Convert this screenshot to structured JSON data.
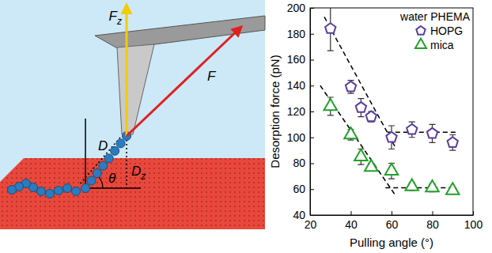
{
  "chart_data": {
    "type": "scatter",
    "x_label": "Pulling angle (°)",
    "y_label": "Desorption force (pN)",
    "xlim": [
      20,
      100
    ],
    "xticks": [
      20,
      40,
      60,
      80,
      100
    ],
    "ylim": [
      40,
      200
    ],
    "yticks": [
      40,
      60,
      80,
      100,
      120,
      140,
      160,
      180,
      200
    ],
    "legend": "upper right",
    "legend_title": "water PHEMA",
    "series": [
      {
        "name": "HOPG",
        "color": "#5a3d9e",
        "marker": "pentagon",
        "x": [
          30,
          40,
          45,
          50,
          60,
          70,
          80,
          90
        ],
        "values": [
          184,
          139,
          123,
          116,
          100,
          106,
          103,
          96
        ],
        "errors": [
          17,
          5,
          7,
          4,
          9,
          6,
          7,
          6
        ]
      },
      {
        "name": "mica",
        "color": "#22a02a",
        "marker": "triangle",
        "x": [
          30,
          40,
          45,
          50,
          60,
          70,
          80,
          90
        ],
        "values": [
          124,
          102,
          85,
          77,
          74,
          62,
          61,
          59
        ],
        "errors": [
          7,
          4,
          6,
          3,
          6,
          3,
          3,
          2
        ]
      },
      {
        "type": "line",
        "line_style": "dashed",
        "color": "#000000",
        "x": [
          27,
          62
        ],
        "values": [
          193,
          92
        ]
      },
      {
        "type": "line",
        "line_style": "dashed",
        "color": "#000000",
        "x": [
          58,
          92
        ],
        "values": [
          104,
          104
        ]
      },
      {
        "type": "line",
        "line_style": "dashed",
        "color": "#000000",
        "x": [
          25,
          62
        ],
        "values": [
          140,
          55
        ]
      },
      {
        "type": "line",
        "line_style": "dashed",
        "color": "#000000",
        "x": [
          57,
          92
        ],
        "values": [
          61,
          61
        ]
      }
    ]
  },
  "diagram": {
    "labels": [
      {
        "text": "F",
        "sub": "z"
      },
      {
        "text": "F"
      },
      {
        "text": "D"
      },
      {
        "text": "D",
        "sub": "z"
      },
      {
        "text": "θ"
      }
    ]
  }
}
